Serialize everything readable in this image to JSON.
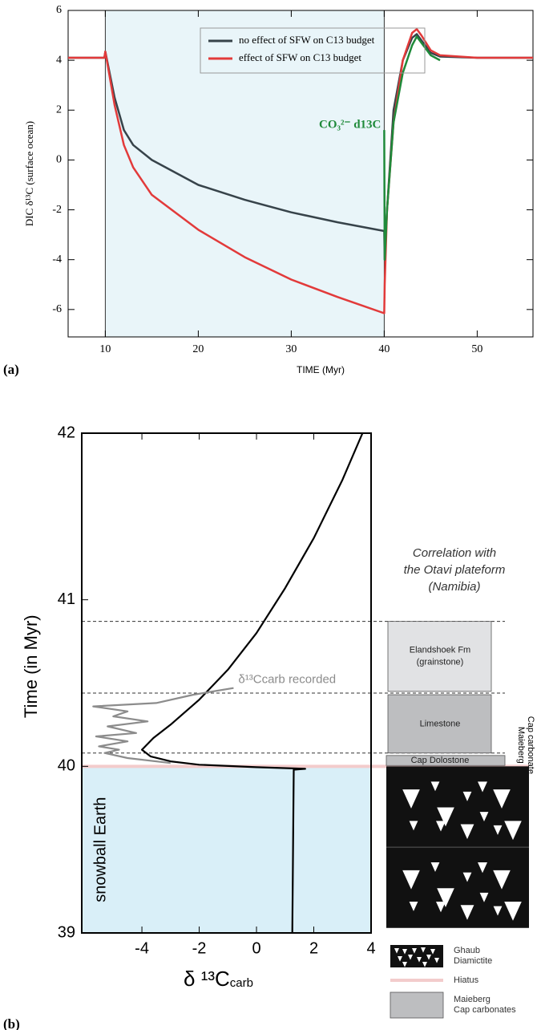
{
  "chart_data": [
    {
      "type": "line",
      "panel_label": "(a)",
      "ylabel": "DIC  δ¹³C  (surface ocean)",
      "xlabel": "TIME (Myr)",
      "xlim": [
        6,
        56
      ],
      "ylim": [
        -7.1,
        6
      ],
      "xticks": [
        10,
        20,
        30,
        40,
        50
      ],
      "yticks": [
        -6,
        -4,
        -2,
        0,
        2,
        4,
        6
      ],
      "shade_x": [
        10,
        40
      ],
      "legend": "upper center",
      "x": [
        6,
        9.9,
        10,
        11,
        12,
        13,
        15,
        20,
        25,
        30,
        35,
        40,
        40.05,
        40.3,
        41,
        42,
        43,
        43.5,
        44,
        45,
        46,
        50,
        56
      ],
      "series": [
        {
          "name": "no effect of SFW on C13 budget",
          "color": "#37434a",
          "values": [
            4.1,
            4.1,
            4.35,
            2.5,
            1.2,
            0.6,
            0,
            -1.0,
            -1.6,
            -2.1,
            -2.5,
            -2.85,
            -4.0,
            -2.0,
            2.0,
            4.0,
            4.9,
            5.05,
            4.8,
            4.3,
            4.15,
            4.1,
            4.1
          ]
        },
        {
          "name": "effect of SFW on C13 budget",
          "color": "#e23a3a",
          "values": [
            4.1,
            4.1,
            4.35,
            2.2,
            0.6,
            -0.3,
            -1.4,
            -2.8,
            -3.9,
            -4.8,
            -5.5,
            -6.15,
            -5.0,
            -2.0,
            1.5,
            4.0,
            5.1,
            5.25,
            5.0,
            4.4,
            4.2,
            4.1,
            4.1
          ]
        },
        {
          "label": "CO₃²⁻ d13C",
          "color": "#1f8a3a",
          "values": [
            null,
            null,
            null,
            null,
            null,
            null,
            null,
            null,
            null,
            null,
            null,
            1.2,
            -4.0,
            -2.0,
            1.5,
            3.5,
            4.6,
            4.95,
            4.7,
            4.2,
            4.0,
            null,
            null
          ]
        }
      ]
    },
    {
      "type": "line",
      "panel_label": "(b)",
      "ylabel": "Time (in Myr)",
      "xlabel": "δ ¹³C",
      "xlabel_sub": "carb",
      "xlim": [
        -6.1,
        4
      ],
      "ylim": [
        39,
        42
      ],
      "xticks": [
        -4,
        -2,
        0,
        2,
        4
      ],
      "yticks": [
        39,
        40,
        41,
        42
      ],
      "shade_y": [
        39,
        40
      ],
      "shade_label": "snowball Earth",
      "hlines": [
        40.08,
        40.44,
        40.87
      ],
      "series": [
        {
          "color": "#000000",
          "x": [
            1.25,
            1.3,
            1.7,
            0,
            -2,
            -3,
            -3.7,
            -4.0,
            -3.6,
            -3,
            -2,
            -1,
            0,
            1,
            2,
            3,
            3.7
          ],
          "values": [
            39,
            39.98,
            39.985,
            39.995,
            40.01,
            40.03,
            40.06,
            40.1,
            40.17,
            40.25,
            40.4,
            40.58,
            40.8,
            41.07,
            41.37,
            41.72,
            42.0
          ]
        },
        {
          "label": "δ¹³Ccarb recorded",
          "color": "#8c8c8c",
          "x": [
            -3,
            -4.5,
            -5.3,
            -4.8,
            -5.5,
            -4.5,
            -5.6,
            -4.2,
            -5.2,
            -3.8,
            -5.0,
            -4.5,
            -5.7,
            -3.5,
            -2.2,
            -0.8
          ],
          "values": [
            40.02,
            40.05,
            40.08,
            40.1,
            40.12,
            40.15,
            40.18,
            40.2,
            40.24,
            40.27,
            40.3,
            40.33,
            40.36,
            40.38,
            40.43,
            40.47
          ]
        }
      ],
      "column": {
        "title": [
          "Correlation with",
          "the Otavi plateform",
          "(Namibia)"
        ],
        "group_label": [
          "Maieberg",
          "Cap carbonate"
        ],
        "units": [
          {
            "label": [
              "Elandshoek  Fm",
              "(grainstone)"
            ],
            "range": [
              40.45,
              40.87
            ],
            "color": "#e1e2e4"
          },
          {
            "label": [
              "Limestone"
            ],
            "range": [
              40.08,
              40.43
            ],
            "color": "#bdbec0"
          },
          {
            "label": [
              "Cap Dolostone"
            ],
            "range": [
              40.005,
              40.065
            ],
            "color": "#bdbec0"
          }
        ],
        "diamictite_range": [
          39.03,
          40
        ],
        "hiatus": 40
      },
      "key": [
        {
          "label": [
            "Ghaub",
            "Diamictite"
          ]
        },
        {
          "label": [
            "Hiatus"
          ]
        },
        {
          "label": [
            "Maieberg",
            "Cap carbonates"
          ]
        }
      ]
    }
  ]
}
